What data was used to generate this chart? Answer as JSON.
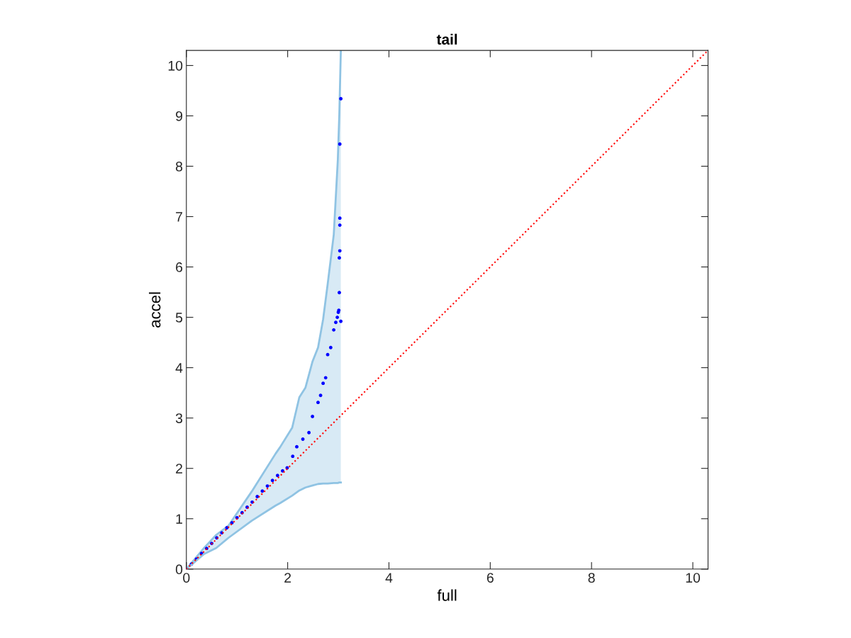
{
  "chart_data": {
    "type": "scatter",
    "title": "tail",
    "xlabel": "full",
    "ylabel": "accel",
    "xlim": [
      0,
      10.3
    ],
    "ylim": [
      0,
      10.3
    ],
    "xticks": [
      0,
      2,
      4,
      6,
      8,
      10
    ],
    "yticks": [
      0,
      1,
      2,
      3,
      4,
      5,
      6,
      7,
      8,
      9,
      10
    ],
    "grid": false,
    "legend": false,
    "series": [
      {
        "type": "line",
        "color": "#8fc3e3",
        "x": [
          0,
          0.35,
          0.59,
          0.83,
          1.29,
          1.76,
          1.85,
          2.09,
          2.23,
          2.35,
          2.49,
          2.6,
          2.7,
          2.79,
          2.91,
          2.99,
          3.02,
          3.05
        ],
        "values": [
          0,
          0.42,
          0.68,
          0.86,
          1.54,
          2.29,
          2.42,
          2.81,
          3.41,
          3.6,
          4.12,
          4.4,
          4.96,
          5.66,
          6.64,
          8.12,
          9.03,
          10.3
        ],
        "upper": [
          0,
          0.42,
          0.68,
          0.86,
          1.54,
          2.29,
          2.42,
          2.81,
          3.41,
          3.6,
          4.12,
          4.4,
          4.96,
          5.66,
          6.64,
          8.12,
          9.03,
          10.3
        ],
        "lower": [
          0,
          0.3,
          0.42,
          0.62,
          0.96,
          1.26,
          1.31,
          1.46,
          1.56,
          1.62,
          1.66,
          1.69,
          1.7,
          1.7,
          1.71,
          1.71,
          1.72,
          1.72
        ]
      },
      {
        "type": "line",
        "color": "#8fc3e3",
        "x": [
          0,
          0.35,
          0.59,
          0.83,
          1.29,
          1.76,
          1.85,
          2.09,
          2.23,
          2.35,
          2.49,
          2.6,
          2.7,
          2.79,
          2.91,
          2.99,
          3.02,
          3.05
        ],
        "values": [
          0,
          0.3,
          0.42,
          0.62,
          0.96,
          1.26,
          1.31,
          1.46,
          1.56,
          1.62,
          1.66,
          1.69,
          1.7,
          1.7,
          1.71,
          1.71,
          1.72,
          1.72
        ]
      },
      {
        "marker": "circle",
        "color": "#0000ff",
        "x": [
          0,
          0.1,
          0.2,
          0.3,
          0.4,
          0.5,
          0.6,
          0.7,
          0.8,
          0.9,
          1.0,
          1.1,
          1.2,
          1.3,
          1.4,
          1.5,
          1.6,
          1.7,
          1.8,
          1.9,
          1.99,
          2.1,
          2.18,
          2.3,
          2.42,
          2.49,
          2.6,
          2.65,
          2.7,
          2.75,
          2.79,
          2.85,
          2.91,
          2.95,
          2.98,
          3.0,
          3.01,
          3.02,
          3.02,
          3.03,
          3.03,
          3.03,
          3.03,
          3.05,
          3.05
        ],
        "values": [
          0,
          0.1,
          0.2,
          0.31,
          0.41,
          0.51,
          0.62,
          0.72,
          0.82,
          0.92,
          1.02,
          1.12,
          1.23,
          1.33,
          1.44,
          1.55,
          1.65,
          1.76,
          1.86,
          1.95,
          2.01,
          2.24,
          2.43,
          2.58,
          2.71,
          3.03,
          3.31,
          3.45,
          3.69,
          3.8,
          4.26,
          4.4,
          4.75,
          4.9,
          5.0,
          5.1,
          5.14,
          5.49,
          6.18,
          6.32,
          6.83,
          6.97,
          8.44,
          9.34,
          4.92
        ]
      },
      {
        "type": "line",
        "color": "#ff0000",
        "line_style": "dotted",
        "x": [
          0,
          10.3
        ],
        "values": [
          0,
          10.3
        ]
      }
    ]
  }
}
